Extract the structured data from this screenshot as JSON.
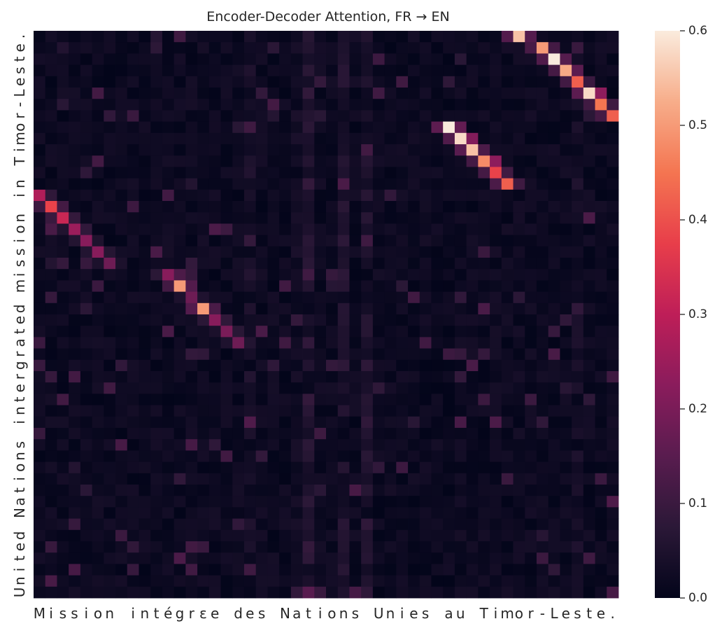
{
  "chart_data": {
    "type": "heatmap",
    "title": "Encoder-Decoder Attention, FR → EN",
    "x_tokens": [
      "M",
      "i",
      "s",
      "s",
      "i",
      "o",
      "n",
      " ",
      "i",
      "n",
      "t",
      "é",
      "g",
      "r",
      "ɛ",
      "e",
      " ",
      "d",
      "e",
      "s",
      " ",
      "N",
      "a",
      "t",
      "i",
      "o",
      "n",
      "s",
      " ",
      "U",
      "n",
      "i",
      "e",
      "s",
      " ",
      "a",
      "u",
      " ",
      "T",
      "i",
      "m",
      "o",
      "r",
      "-",
      "L",
      "e",
      "s",
      "t",
      "e",
      "."
    ],
    "y_tokens": [
      "U",
      "n",
      "i",
      "t",
      "e",
      "d",
      " ",
      "N",
      "a",
      "t",
      "i",
      "o",
      "n",
      "s",
      " ",
      "i",
      "n",
      "t",
      "e",
      "r",
      "g",
      "r",
      "a",
      "t",
      "e",
      "d",
      " ",
      "m",
      "i",
      "s",
      "s",
      "i",
      "o",
      "n",
      " ",
      "i",
      "n",
      " ",
      "T",
      "i",
      "m",
      "o",
      "r",
      "-",
      "L",
      "e",
      "s",
      "t",
      "e",
      "."
    ],
    "alignment": [
      [
        41,
        0.55
      ],
      [
        43,
        0.5
      ],
      [
        44,
        0.6
      ],
      [
        45,
        0.52
      ],
      [
        46,
        0.42
      ],
      [
        47,
        0.58
      ],
      [
        48,
        0.45
      ],
      [
        49,
        0.42
      ],
      [
        35,
        0.6
      ],
      [
        36,
        0.58
      ],
      [
        37,
        0.55
      ],
      [
        38,
        0.48
      ],
      [
        39,
        0.38
      ],
      [
        40,
        0.42
      ],
      [
        0,
        0.28
      ],
      [
        1,
        0.38
      ],
      [
        2,
        0.32
      ],
      [
        3,
        0.25
      ],
      [
        4,
        0.22
      ],
      [
        5,
        0.22
      ],
      [
        6,
        0.18
      ],
      [
        11,
        0.22
      ],
      [
        12,
        0.5
      ],
      [
        13,
        0.18
      ],
      [
        14,
        0.5
      ],
      [
        15,
        0.22
      ],
      [
        16,
        0.2
      ],
      [
        17,
        0.18
      ]
    ],
    "colorbar": {
      "min": 0.0,
      "max": 0.6,
      "ticks": [
        "0.0",
        "0.1",
        "0.2",
        "0.3",
        "0.4",
        "0.5",
        "0.6"
      ]
    },
    "grid": false,
    "legend": "colorbar-right"
  }
}
